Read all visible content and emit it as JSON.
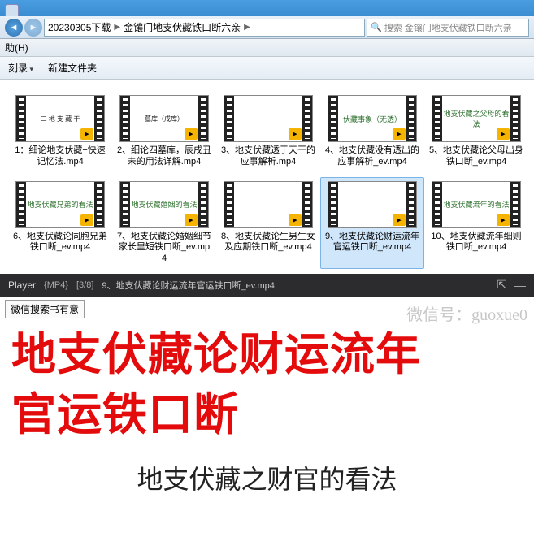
{
  "window": {
    "tabs": [
      {
        "label": ""
      }
    ]
  },
  "address": {
    "crumb1": "20230305下载",
    "crumb2": "金镶门地支伏藏铁口断六亲",
    "search_placeholder": "搜索 金镶门地支伏藏铁口断六亲"
  },
  "menu": {
    "help": "助(H)"
  },
  "toolbar": {
    "burn": "刻录",
    "newfolder": "新建文件夹"
  },
  "files": [
    {
      "name": "1：细论地支伏藏+快速记忆法.mp4",
      "preview": "二 地 支 藏 干",
      "style": "plain",
      "selected": false
    },
    {
      "name": "2、细论四墓库，辰戌丑未的用法详解.mp4",
      "preview": "墓库（戌库）",
      "style": "plain",
      "selected": false
    },
    {
      "name": "3、地支伏藏透于天干的应事解析.mp4",
      "preview": "",
      "style": "plain",
      "selected": false
    },
    {
      "name": "4、地支伏藏没有透出的应事解析_ev.mp4",
      "preview": "伏藏事象（无透）",
      "style": "green",
      "selected": false
    },
    {
      "name": "5、地支伏藏论父母出身铁口断_ev.mp4",
      "preview": "地支伏藏之父母的看法",
      "style": "green",
      "selected": false
    },
    {
      "name": "6、地支伏藏论同胞兄弟铁口断_ev.mp4",
      "preview": "地支伏藏兄弟的看法",
      "style": "green",
      "selected": false
    },
    {
      "name": "7、地支伏藏论婚姻细节家长里短铁口断_ev.mp4",
      "preview": "地支伏藏婚姻的看法",
      "style": "green",
      "selected": false
    },
    {
      "name": "8、地支伏藏论生男生女及应期铁口断_ev.mp4",
      "preview": "",
      "style": "plain",
      "selected": false
    },
    {
      "name": "9、地支伏藏论财运流年官运铁口断_ev.mp4",
      "preview": "",
      "style": "plain",
      "selected": true
    },
    {
      "name": "10、地支伏藏流年细则铁口断_ev.mp4",
      "preview": "地支伏藏流年的看法",
      "style": "green",
      "selected": false
    }
  ],
  "player": {
    "brand": "Player",
    "format": "{MP4}",
    "pos": "[3/8]",
    "title": "9、地支伏藏论财运流年官运铁口断_ev.mp4"
  },
  "video": {
    "wx_search": "微信搜索书有意",
    "wx_id": "微信号：guoxue0",
    "line1": "地支伏藏论财运流年",
    "line2": "官运铁口断",
    "subtitle": "地支伏藏之财官的看法"
  }
}
